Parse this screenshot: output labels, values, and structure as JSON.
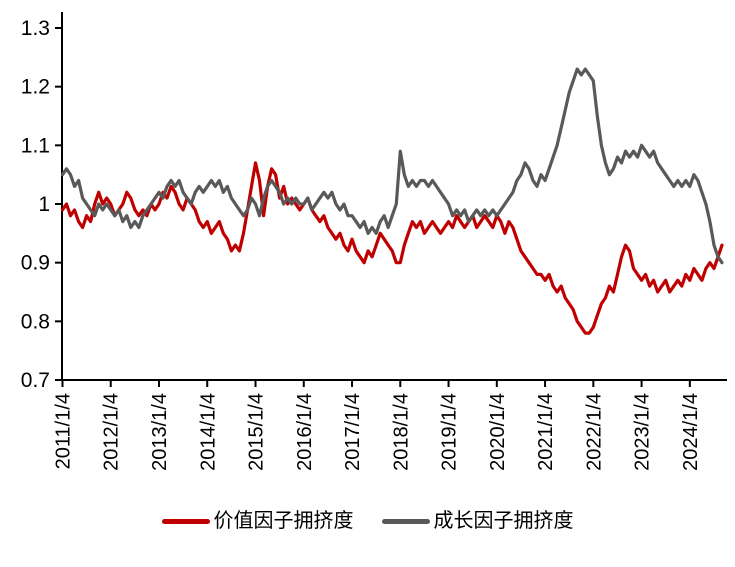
{
  "chart_data": {
    "type": "line",
    "title": "",
    "xlabel": "",
    "ylabel": "",
    "grid": false,
    "legend_position": "bottom",
    "ylim": [
      0.7,
      1.3
    ],
    "x_range": [
      2011.0,
      2024.78
    ],
    "x_step": 0.0833333,
    "start_offset": 0.01,
    "tick_day_offset": 0.01,
    "y_ticks": [
      {
        "value": 0.7,
        "label": "0.7"
      },
      {
        "value": 0.8,
        "label": "0.8"
      },
      {
        "value": 0.9,
        "label": "0.9"
      },
      {
        "value": 1.0,
        "label": "1"
      },
      {
        "value": 1.1,
        "label": "1.1"
      },
      {
        "value": 1.2,
        "label": "1.2"
      },
      {
        "value": 1.3,
        "label": "1.3"
      }
    ],
    "x_ticks": [
      {
        "year": 2011,
        "label": "2011/1/4"
      },
      {
        "year": 2012,
        "label": "2012/1/4"
      },
      {
        "year": 2013,
        "label": "2013/1/4"
      },
      {
        "year": 2014,
        "label": "2014/1/4"
      },
      {
        "year": 2015,
        "label": "2015/1/4"
      },
      {
        "year": 2016,
        "label": "2016/1/4"
      },
      {
        "year": 2017,
        "label": "2017/1/4"
      },
      {
        "year": 2018,
        "label": "2018/1/4"
      },
      {
        "year": 2019,
        "label": "2019/1/4"
      },
      {
        "year": 2020,
        "label": "2020/1/4"
      },
      {
        "year": 2021,
        "label": "2021/1/4"
      },
      {
        "year": 2022,
        "label": "2022/1/4"
      },
      {
        "year": 2023,
        "label": "2023/1/4"
      },
      {
        "year": 2024,
        "label": "2024/1/4"
      }
    ],
    "series": [
      {
        "name": "价值因子拥挤度",
        "color": "#c00000",
        "values": [
          0.99,
          1.0,
          0.98,
          0.99,
          0.97,
          0.96,
          0.98,
          0.97,
          1.0,
          1.02,
          1.0,
          1.01,
          1.0,
          0.98,
          0.99,
          1.0,
          1.02,
          1.01,
          0.99,
          0.98,
          0.99,
          0.98,
          1.0,
          0.99,
          1.0,
          1.02,
          1.01,
          1.03,
          1.02,
          1.0,
          0.99,
          1.01,
          1.0,
          0.99,
          0.97,
          0.96,
          0.97,
          0.95,
          0.96,
          0.97,
          0.95,
          0.94,
          0.92,
          0.93,
          0.92,
          0.95,
          0.99,
          1.03,
          1.07,
          1.04,
          0.98,
          1.03,
          1.06,
          1.05,
          1.01,
          1.03,
          1.0,
          1.01,
          1.0,
          0.99,
          1.0,
          1.01,
          0.99,
          0.98,
          0.97,
          0.98,
          0.96,
          0.95,
          0.94,
          0.95,
          0.93,
          0.92,
          0.94,
          0.92,
          0.91,
          0.9,
          0.92,
          0.91,
          0.93,
          0.95,
          0.94,
          0.93,
          0.92,
          0.9,
          0.9,
          0.93,
          0.95,
          0.97,
          0.96,
          0.97,
          0.95,
          0.96,
          0.97,
          0.96,
          0.95,
          0.96,
          0.97,
          0.96,
          0.98,
          0.97,
          0.96,
          0.97,
          0.98,
          0.96,
          0.97,
          0.98,
          0.97,
          0.96,
          0.98,
          0.97,
          0.95,
          0.97,
          0.96,
          0.94,
          0.92,
          0.91,
          0.9,
          0.89,
          0.88,
          0.88,
          0.87,
          0.88,
          0.86,
          0.85,
          0.86,
          0.84,
          0.83,
          0.82,
          0.8,
          0.79,
          0.78,
          0.78,
          0.79,
          0.81,
          0.83,
          0.84,
          0.86,
          0.85,
          0.88,
          0.91,
          0.93,
          0.92,
          0.89,
          0.88,
          0.87,
          0.88,
          0.86,
          0.87,
          0.85,
          0.86,
          0.87,
          0.85,
          0.86,
          0.87,
          0.86,
          0.88,
          0.87,
          0.89,
          0.88,
          0.87,
          0.89,
          0.9,
          0.89,
          0.91,
          0.93
        ]
      },
      {
        "name": "成长因子拥挤度",
        "color": "#595959",
        "values": [
          1.05,
          1.06,
          1.05,
          1.03,
          1.04,
          1.01,
          1.0,
          0.99,
          0.98,
          1.0,
          0.99,
          1.0,
          0.99,
          0.98,
          0.99,
          0.97,
          0.98,
          0.96,
          0.97,
          0.96,
          0.98,
          0.99,
          1.0,
          1.01,
          1.02,
          1.01,
          1.03,
          1.04,
          1.03,
          1.04,
          1.02,
          1.01,
          1.0,
          1.02,
          1.03,
          1.02,
          1.03,
          1.04,
          1.03,
          1.04,
          1.02,
          1.03,
          1.01,
          1.0,
          0.99,
          0.98,
          0.99,
          1.01,
          1.0,
          0.98,
          1.01,
          1.03,
          1.04,
          1.03,
          1.02,
          1.0,
          1.01,
          1.0,
          1.01,
          1.0,
          1.0,
          1.01,
          0.99,
          1.0,
          1.01,
          1.02,
          1.01,
          1.02,
          1.0,
          0.99,
          1.0,
          0.98,
          0.98,
          0.97,
          0.96,
          0.97,
          0.95,
          0.96,
          0.95,
          0.97,
          0.98,
          0.96,
          0.98,
          1.0,
          1.09,
          1.05,
          1.03,
          1.04,
          1.03,
          1.04,
          1.04,
          1.03,
          1.04,
          1.03,
          1.02,
          1.01,
          1.0,
          0.98,
          0.99,
          0.98,
          0.99,
          0.97,
          0.98,
          0.99,
          0.98,
          0.99,
          0.98,
          0.99,
          0.98,
          0.99,
          1.0,
          1.01,
          1.02,
          1.04,
          1.05,
          1.07,
          1.06,
          1.04,
          1.03,
          1.05,
          1.04,
          1.06,
          1.08,
          1.1,
          1.13,
          1.16,
          1.19,
          1.21,
          1.23,
          1.22,
          1.23,
          1.22,
          1.21,
          1.15,
          1.1,
          1.07,
          1.05,
          1.06,
          1.08,
          1.07,
          1.09,
          1.08,
          1.09,
          1.08,
          1.1,
          1.09,
          1.08,
          1.09,
          1.07,
          1.06,
          1.05,
          1.04,
          1.03,
          1.04,
          1.03,
          1.04,
          1.03,
          1.05,
          1.04,
          1.02,
          1.0,
          0.97,
          0.93,
          0.91,
          0.9
        ]
      }
    ]
  },
  "colors": {
    "axis": "#000000",
    "tick_text": "#000000",
    "series_value": "#c00000",
    "series_growth": "#595959"
  }
}
